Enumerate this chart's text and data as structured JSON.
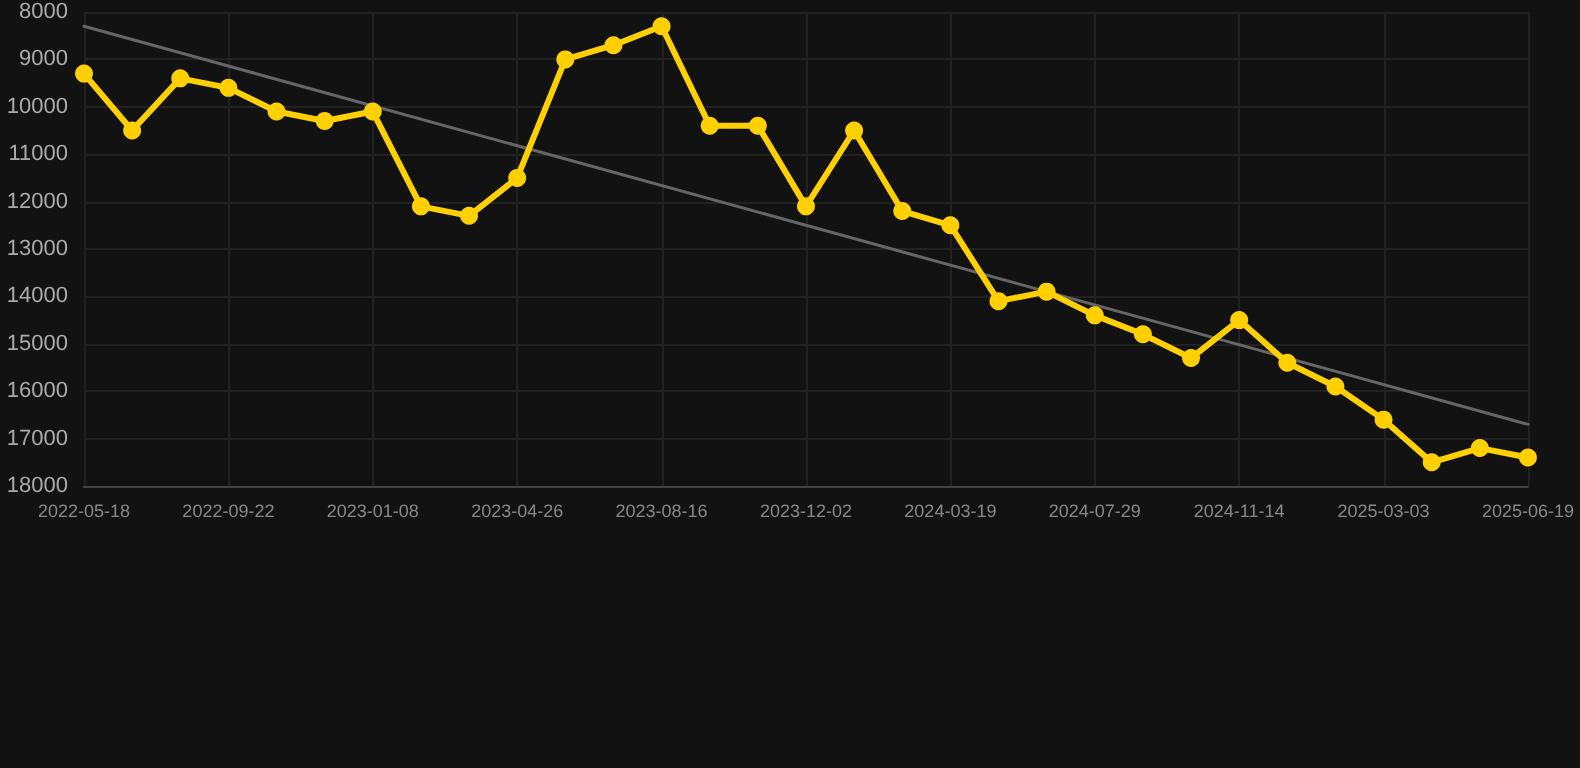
{
  "chart_data": {
    "type": "line",
    "categories": [
      "2022-05-18",
      null,
      null,
      "2022-09-22",
      null,
      null,
      "2023-01-08",
      null,
      null,
      "2023-04-26",
      null,
      null,
      "2023-08-16",
      null,
      null,
      "2023-12-02",
      null,
      null,
      "2024-03-19",
      null,
      null,
      "2024-07-29",
      null,
      null,
      "2024-11-14",
      null,
      null,
      "2025-03-03",
      null,
      null,
      "2025-06-19"
    ],
    "series": [
      {
        "color": "#ffd000",
        "marker": "circle",
        "values": [
          9300,
          10500,
          9400,
          9600,
          10100,
          10300,
          10100,
          12100,
          12300,
          11500,
          9000,
          8700,
          8300,
          10400,
          10400,
          12100,
          10500,
          12200,
          12500,
          14100,
          13900,
          14400,
          14800,
          15300,
          14500,
          15400,
          15900,
          16600,
          17500,
          17200,
          17400
        ]
      },
      {
        "type": "line",
        "color": "#666666",
        "marker": "none",
        "values": [
          8300,
          null,
          null,
          null,
          null,
          null,
          null,
          null,
          null,
          null,
          null,
          null,
          null,
          null,
          null,
          null,
          null,
          null,
          null,
          null,
          null,
          null,
          null,
          null,
          null,
          null,
          null,
          null,
          null,
          null,
          16700
        ]
      }
    ],
    "ylim": [
      18000,
      8000
    ],
    "yticks": [
      8000,
      9000,
      10000,
      11000,
      12000,
      13000,
      14000,
      15000,
      16000,
      17000,
      18000
    ],
    "grid": true
  }
}
